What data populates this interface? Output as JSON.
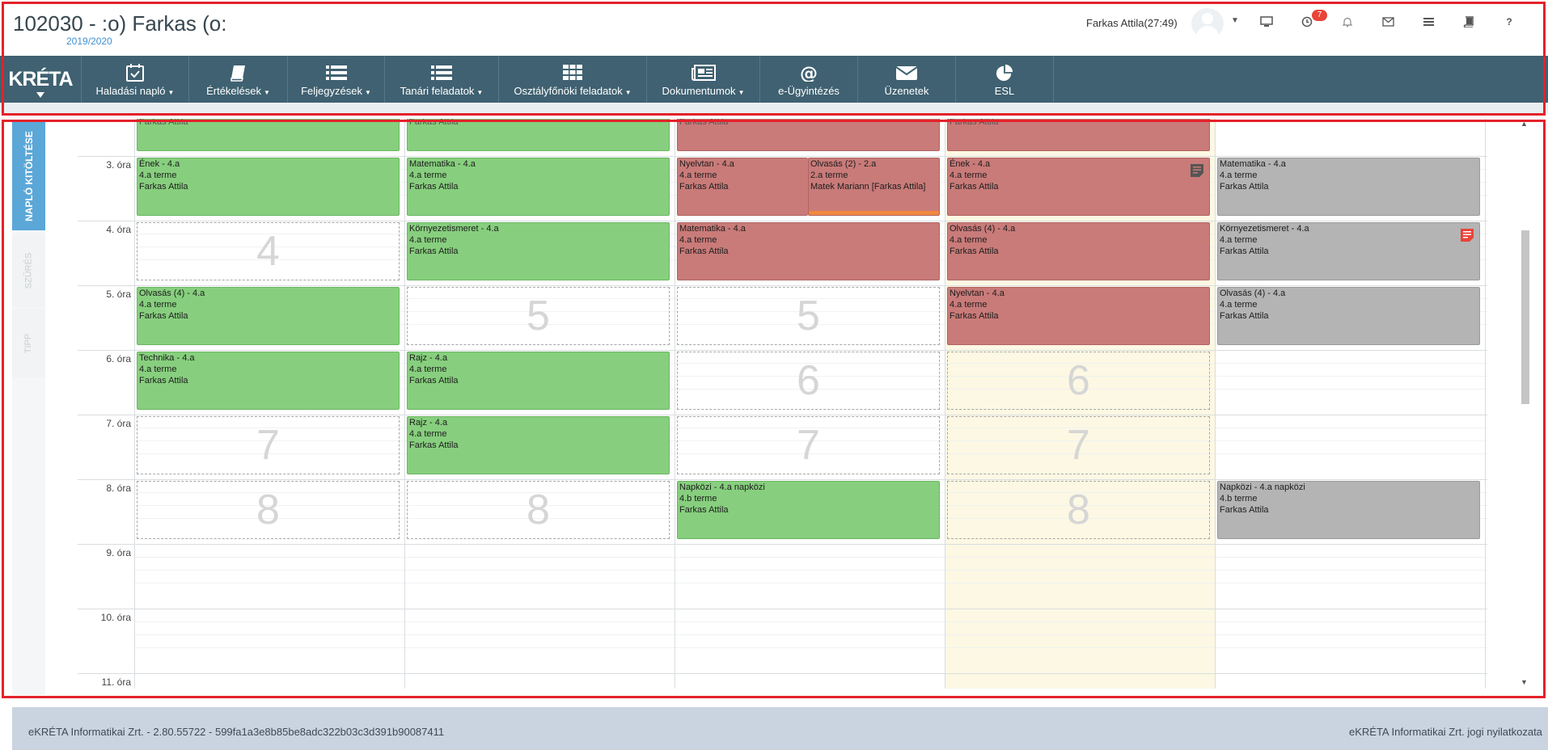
{
  "header": {
    "title": "102030 - :o) Farkas (o:",
    "school_year": "2019/2020",
    "user_name": "Farkas Attila(27:49)",
    "notification_count": "7",
    "icons": [
      "monitor-icon",
      "clock-icon",
      "bell-icon",
      "mail-icon",
      "list-card-icon",
      "book-icon",
      "help-icon"
    ],
    "help_label": "?"
  },
  "nav": {
    "logo": "KRÉTA",
    "items": [
      {
        "label": "Haladási napló",
        "icon": "calendar-check-icon",
        "dropdown": true
      },
      {
        "label": "Értékelések",
        "icon": "book-icon",
        "dropdown": true
      },
      {
        "label": "Feljegyzések",
        "icon": "list-icon",
        "dropdown": true
      },
      {
        "label": "Tanári feladatok",
        "icon": "list-icon",
        "dropdown": true
      },
      {
        "label": "Osztályfőnöki feladatok",
        "icon": "grid-icon",
        "dropdown": true
      },
      {
        "label": "Dokumentumok",
        "icon": "newspaper-icon",
        "dropdown": true
      },
      {
        "label": "e-Ügyintézés",
        "icon": "at-icon",
        "dropdown": false
      },
      {
        "label": "Üzenetek",
        "icon": "envelope-icon",
        "dropdown": false
      },
      {
        "label": "ESL",
        "icon": "pie-chart-icon",
        "dropdown": false
      }
    ]
  },
  "side_tabs": [
    "NAPLÓ KITÖLTÉSE",
    "SZŰRÉS",
    "TIPP"
  ],
  "calendar": {
    "hours": [
      "3. óra",
      "4. óra",
      "5. óra",
      "6. óra",
      "7. óra",
      "8. óra",
      "9. óra",
      "10. óra",
      "11. óra"
    ],
    "top_row_teacher": "Farkas Attila",
    "events": {
      "d0_h3": {
        "l1": "Ének - 4.a",
        "l2": "4.a terme",
        "l3": "Farkas Attila"
      },
      "d1_h3": {
        "l1": "Matematika - 4.a",
        "l2": "4.a terme",
        "l3": "Farkas Attila"
      },
      "d2_h3a": {
        "l1": "Nyelvtan - 4.a",
        "l2": "4.a terme",
        "l3": "Farkas Attila"
      },
      "d2_h3b": {
        "l1": "Olvasás (2) - 2.a",
        "l2": "2.a terme",
        "l3": "Matek Mariann [Farkas Attila]"
      },
      "d3_h3": {
        "l1": "Ének - 4.a",
        "l2": "4.a terme",
        "l3": "Farkas Attila"
      },
      "d4_h3": {
        "l1": "Matematika - 4.a",
        "l2": "4.a terme",
        "l3": "Farkas Attila"
      },
      "d1_h4": {
        "l1": "Környezetismeret - 4.a",
        "l2": "4.a terme",
        "l3": "Farkas Attila"
      },
      "d2_h4": {
        "l1": "Matematika - 4.a",
        "l2": "4.a terme",
        "l3": "Farkas Attila"
      },
      "d3_h4": {
        "l1": "Olvasás (4) - 4.a",
        "l2": "4.a terme",
        "l3": "Farkas Attila"
      },
      "d4_h4": {
        "l1": "Környezetismeret - 4.a",
        "l2": "4.a terme",
        "l3": "Farkas Attila"
      },
      "d0_h5": {
        "l1": "Olvasás (4) - 4.a",
        "l2": "4.a terme",
        "l3": "Farkas Attila"
      },
      "d3_h5": {
        "l1": "Nyelvtan - 4.a",
        "l2": "4.a terme",
        "l3": "Farkas Attila"
      },
      "d4_h5": {
        "l1": "Olvasás (4) - 4.a",
        "l2": "4.a terme",
        "l3": "Farkas Attila"
      },
      "d0_h6": {
        "l1": "Technika - 4.a",
        "l2": "4.a terme",
        "l3": "Farkas Attila"
      },
      "d1_h6": {
        "l1": "Rajz - 4.a",
        "l2": "4.a terme",
        "l3": "Farkas Attila"
      },
      "d1_h7": {
        "l1": "Rajz - 4.a",
        "l2": "4.a terme",
        "l3": "Farkas Attila"
      },
      "d2_h8": {
        "l1": "Napközi - 4.a napközi",
        "l2": "4.b terme",
        "l3": "Farkas Attila"
      },
      "d4_h8": {
        "l1": "Napközi - 4.a napközi",
        "l2": "4.b terme",
        "l3": "Farkas Attila"
      }
    },
    "empty_slots": {
      "h4": "4",
      "h5": "5",
      "h6": "6",
      "h7": "7",
      "h8": "8"
    }
  },
  "footer": {
    "left": "eKRÉTA Informatikai Zrt. - 2.80.55722 - 599fa1a3e8b85be8adc322b03c3d391b90087411",
    "right": "eKRÉTA Informatikai Zrt. jogi nyilatkozata"
  },
  "colors": {
    "nav_bg": "#3f6171",
    "done_lesson": "#87cf7e",
    "missing_lesson": "#c97b79",
    "future_lesson": "#b4b4b4",
    "today_highlight": "#fcf8e3",
    "active_tab": "#5ba7d8"
  }
}
